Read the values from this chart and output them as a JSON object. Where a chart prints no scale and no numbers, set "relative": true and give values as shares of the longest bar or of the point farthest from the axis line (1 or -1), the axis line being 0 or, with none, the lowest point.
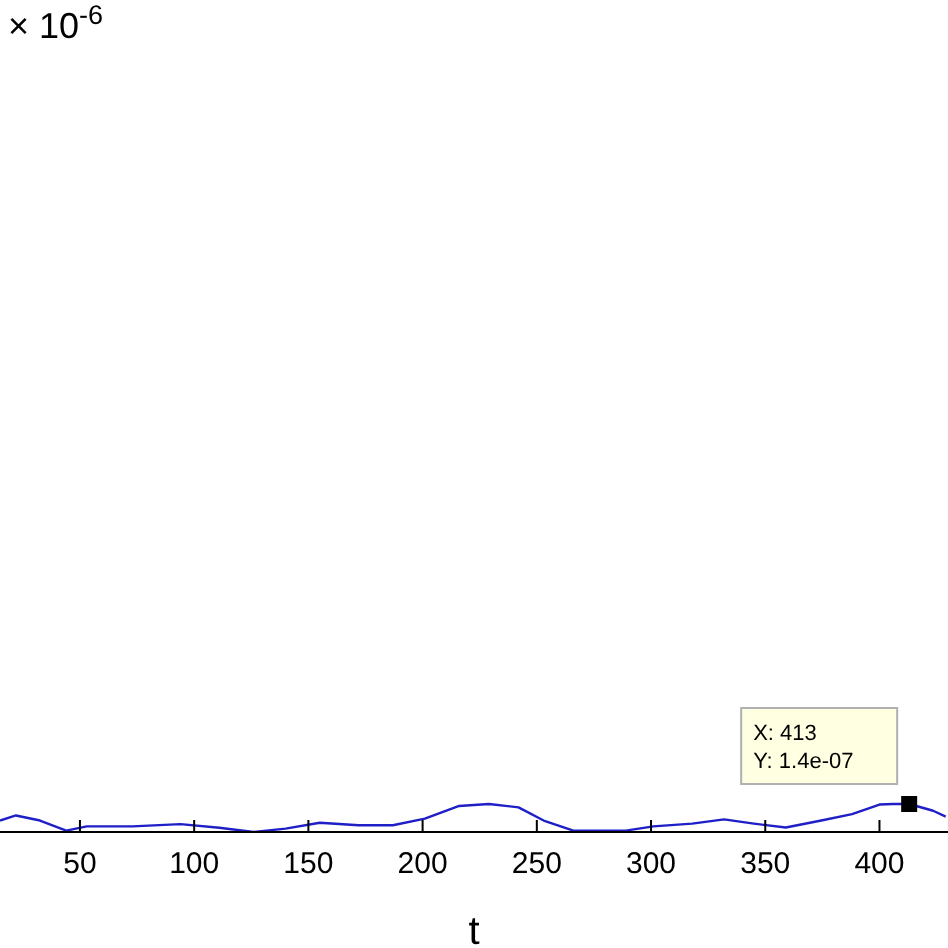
{
  "chart_data": {
    "type": "line",
    "relative": true,
    "xlabel": "t",
    "x": [
      15,
      22,
      32.5,
      44,
      53,
      73,
      94,
      111,
      126,
      140,
      155,
      172,
      187,
      201,
      216,
      229,
      242,
      253,
      266,
      289,
      301,
      318,
      332,
      345,
      359,
      374,
      388,
      400,
      406,
      413,
      423.5,
      429
    ],
    "series": [
      {
        "color": "#1f1fc8",
        "values": [
          0.41,
          0.59,
          0.41,
          0.05,
          0.2,
          0.2,
          0.28,
          0.15,
          0,
          0.12,
          0.33,
          0.24,
          0.24,
          0.48,
          0.93,
          1,
          0.88,
          0.41,
          0.05,
          0.05,
          0.2,
          0.3,
          0.45,
          0.3,
          0.16,
          0.4,
          0.64,
          0.98,
          1,
          1,
          0.76,
          0.55
        ]
      }
    ],
    "xlim": [
      15,
      430
    ],
    "xticks": [
      50,
      100,
      150,
      200,
      250,
      300,
      350,
      400
    ],
    "marker": "none",
    "line_style": "solid",
    "annotations": [
      "× 10$^{-6}$",
      {
        "text": "X: 413\nY: 1.4e-07",
        "x": 413,
        "y": 1
      }
    ]
  }
}
